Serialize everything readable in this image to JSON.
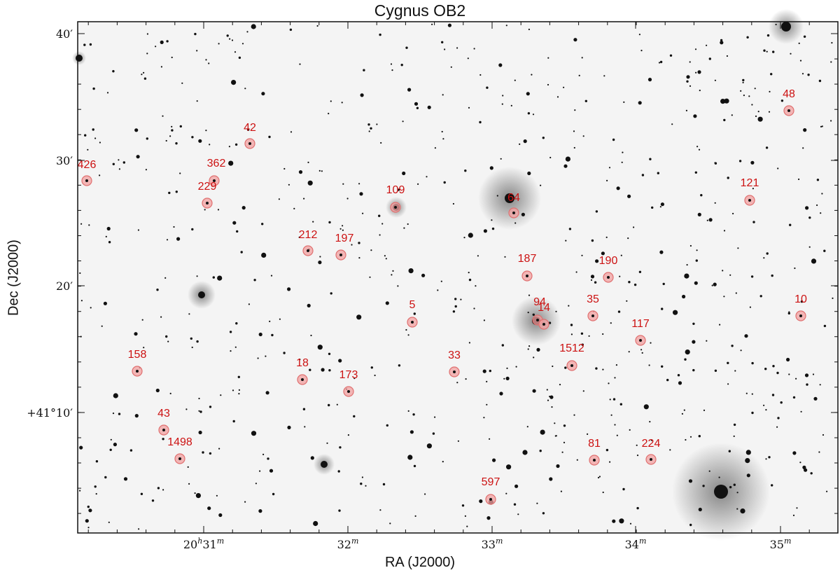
{
  "title": "Cygnus OB2",
  "x_axis_label": "RA (J2000)",
  "y_axis_label": "Dec (J2000)",
  "ra_ticks": [
    {
      "main": "20",
      "main_sup": "h",
      "minor": "31",
      "minor_sup": "m"
    },
    {
      "main": "32",
      "main_sup": "m"
    },
    {
      "main": "33",
      "main_sup": "m"
    },
    {
      "main": "34",
      "main_sup": "m"
    },
    {
      "main": "35",
      "main_sup": "m"
    }
  ],
  "dec_ticks": [
    {
      "text": "40′"
    },
    {
      "text": "30′"
    },
    {
      "text": "20′"
    },
    {
      "text": "+41°10′"
    }
  ],
  "sources": [
    "426",
    "362",
    "229",
    "42",
    "109",
    "212",
    "197",
    "64",
    "48",
    "121",
    "187",
    "190",
    "5",
    "94",
    "14",
    "35",
    "117",
    "10",
    "158",
    "1512",
    "18",
    "173",
    "33",
    "43",
    "1498",
    "81",
    "224",
    "597"
  ],
  "colors": {
    "label": "#cc1111",
    "marker_fill": "#f2a0a0",
    "marker_stroke": "#e07070",
    "star": "#111111",
    "sky": "#f4f4f4"
  }
}
